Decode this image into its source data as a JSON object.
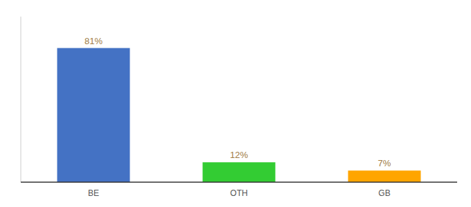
{
  "chart_data": {
    "type": "bar",
    "categories": [
      "BE",
      "OTH",
      "GB"
    ],
    "values": [
      81,
      12,
      7
    ],
    "value_labels": [
      "81%",
      "12%",
      "7%"
    ],
    "colors": [
      "#4472C4",
      "#33CC33",
      "#FFA500"
    ],
    "ylim": [
      0,
      100
    ],
    "data_labels": true,
    "tick_labels": "x",
    "grid": false
  }
}
